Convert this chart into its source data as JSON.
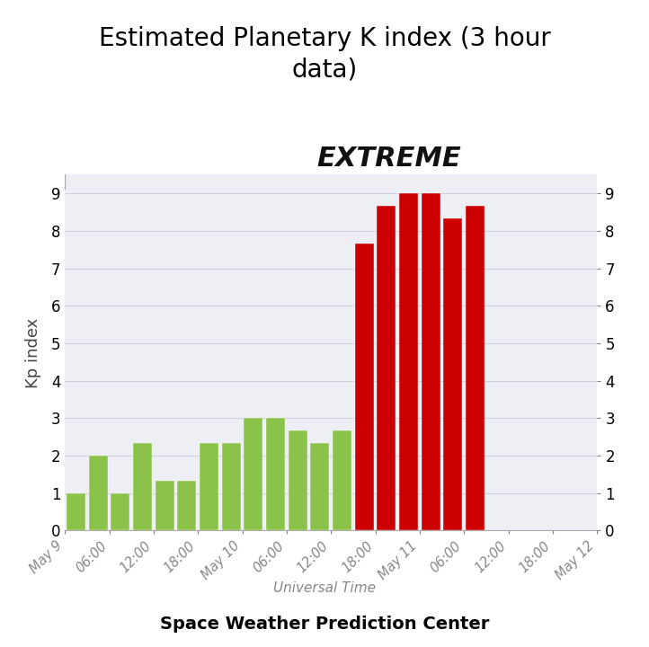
{
  "title": "Estimated Planetary K index (3 hour\ndata)",
  "xlabel": "Universal Time",
  "xlabel2": "Space Weather Prediction Center",
  "ylabel": "Kp index",
  "extreme_label": "EXTREME",
  "bar_values": [
    1.0,
    2.0,
    1.0,
    2.33,
    1.33,
    1.33,
    2.33,
    2.33,
    3.0,
    3.0,
    2.67,
    2.33,
    2.67,
    7.67,
    8.67,
    9.0,
    9.0,
    8.33,
    8.67
  ],
  "bar_colors": [
    "#8bc34a",
    "#8bc34a",
    "#8bc34a",
    "#8bc34a",
    "#8bc34a",
    "#8bc34a",
    "#8bc34a",
    "#8bc34a",
    "#8bc34a",
    "#8bc34a",
    "#8bc34a",
    "#8bc34a",
    "#8bc34a",
    "#cc0000",
    "#cc0000",
    "#cc0000",
    "#cc0000",
    "#cc0000",
    "#cc0000"
  ],
  "tick_labels": [
    "May 9",
    "06:00",
    "12:00",
    "18:00",
    "May 10",
    "06:00",
    "12:00",
    "18:00",
    "May 11",
    "06:00",
    "12:00",
    "18:00",
    "May 12"
  ],
  "ylim": [
    0,
    9.5
  ],
  "yticks": [
    0,
    1,
    2,
    3,
    4,
    5,
    6,
    7,
    8,
    9
  ],
  "background_color": "#eeeef5",
  "title_fontsize": 20,
  "tick_label_color": "#888888",
  "extreme_color": "#111111",
  "bar_width": 0.85,
  "grid_color": "#d0d0e0"
}
